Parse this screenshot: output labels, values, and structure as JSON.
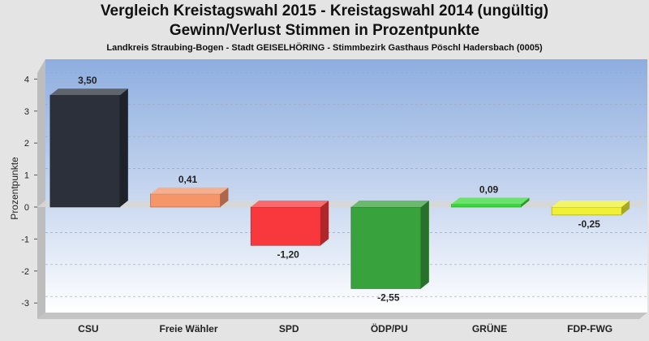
{
  "title": "Vergleich Kreistagswahl 2015 - Kreistagswahl 2014 (ungültig)",
  "subtitle": "Gewinn/Verlust Stimmen in Prozentpunkte",
  "location": "Landkreis Straubing-Bogen - Stadt GEISELHÖRING - Stimmbezirk Gasthaus Pöschl Hadersbach (0005)",
  "chart_data": {
    "type": "bar",
    "title": "Vergleich Kreistagswahl 2015 - Kreistagswahl 2014 (ungültig)",
    "subtitle": "Gewinn/Verlust Stimmen in Prozentpunkte",
    "ylabel": "Prozentpunkte",
    "xlabel": "",
    "ylim": [
      -3.5,
      4.5
    ],
    "yticks": [
      -3,
      -2,
      -1,
      0,
      1,
      2,
      3,
      4
    ],
    "grid": true,
    "categories": [
      "CSU",
      "Freie Wähler",
      "SPD",
      "ÖDP/PU",
      "GRÜNE",
      "FDP-FWG"
    ],
    "values": [
      3.5,
      0.41,
      -1.2,
      -2.55,
      0.09,
      -0.25
    ],
    "value_labels": [
      "3,50",
      "0,41",
      "-1,20",
      "-2,55",
      "0,09",
      "-0,25"
    ],
    "colors": [
      "#2b303b",
      "#f4956a",
      "#f8383c",
      "#38a23c",
      "#3ad83a",
      "#f0f034"
    ]
  }
}
